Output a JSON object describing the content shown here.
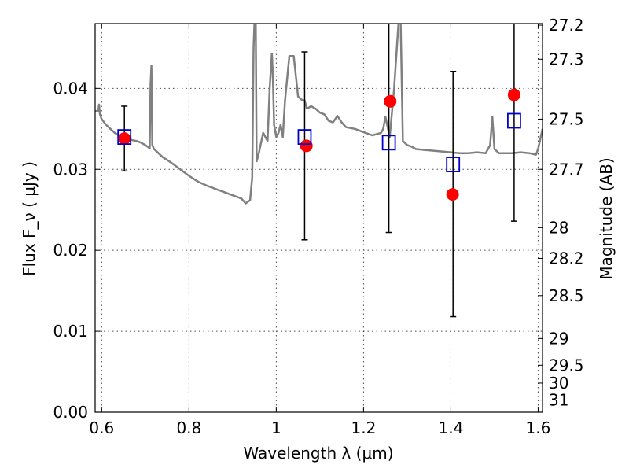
{
  "chart_data": {
    "type": "scatter",
    "title": "",
    "xlabel": "Wavelength  λ (μm)",
    "ylabel": "Flux  F_ν  ( μJy )",
    "ylabel_right": "Magnitude (AB)",
    "xlim": [
      0.585,
      1.61
    ],
    "ylim": [
      0.0,
      0.048
    ],
    "grid": true,
    "legend": "none",
    "x_ticks": [
      "0.6",
      "0.8",
      "1",
      "1.2",
      "1.4",
      "1.6"
    ],
    "x_tick_values": [
      0.6,
      0.8,
      1.0,
      1.2,
      1.4,
      1.6
    ],
    "y_ticks": [
      "0.00",
      "0.01",
      "0.02",
      "0.03",
      "0.04"
    ],
    "y_tick_values": [
      0.0,
      0.01,
      0.02,
      0.03,
      0.04
    ],
    "right_ticks": [
      {
        "label": "27.2",
        "flux": 0.0478
      },
      {
        "label": "27.3",
        "flux": 0.0436
      },
      {
        "label": "27.5",
        "flux": 0.0362
      },
      {
        "label": "27.7",
        "flux": 0.03
      },
      {
        "label": "28",
        "flux": 0.0228
      },
      {
        "label": "28.2",
        "flux": 0.019
      },
      {
        "label": "28.5",
        "flux": 0.0144
      },
      {
        "label": "29",
        "flux": 0.0091
      },
      {
        "label": "29.5",
        "flux": 0.0058
      },
      {
        "label": "30",
        "flux": 0.0036
      },
      {
        "label": "31",
        "flux": 0.0015
      }
    ],
    "model_spectrum": {
      "color": "#808080",
      "x": [
        0.585,
        0.592,
        0.594,
        0.596,
        0.6,
        0.61,
        0.62,
        0.63,
        0.64,
        0.65,
        0.66,
        0.67,
        0.68,
        0.69,
        0.7,
        0.705,
        0.71,
        0.712,
        0.714,
        0.716,
        0.72,
        0.73,
        0.74,
        0.76,
        0.78,
        0.8,
        0.82,
        0.84,
        0.86,
        0.88,
        0.9,
        0.92,
        0.93,
        0.94,
        0.945,
        0.948,
        0.95,
        0.953,
        0.955,
        0.96,
        0.97,
        0.98,
        0.985,
        0.99,
        0.992,
        0.995,
        1.0,
        1.005,
        1.01,
        1.015,
        1.02,
        1.03,
        1.04,
        1.05,
        1.06,
        1.065,
        1.07,
        1.08,
        1.09,
        1.1,
        1.11,
        1.12,
        1.13,
        1.14,
        1.15,
        1.16,
        1.18,
        1.2,
        1.22,
        1.24,
        1.245,
        1.25,
        1.26,
        1.27,
        1.28,
        1.285,
        1.29,
        1.3,
        1.31,
        1.32,
        1.34,
        1.36,
        1.38,
        1.4,
        1.42,
        1.44,
        1.46,
        1.48,
        1.49,
        1.495,
        1.5,
        1.51,
        1.52,
        1.54,
        1.56,
        1.58,
        1.595,
        1.6,
        1.61
      ],
      "y": [
        0.0372,
        0.0372,
        0.038,
        0.0368,
        0.0362,
        0.0355,
        0.035,
        0.0345,
        0.0342,
        0.034,
        0.0338,
        0.0336,
        0.0335,
        0.0333,
        0.033,
        0.0328,
        0.0326,
        0.0405,
        0.0428,
        0.033,
        0.0325,
        0.032,
        0.0315,
        0.0308,
        0.03,
        0.0292,
        0.0285,
        0.028,
        0.0276,
        0.0272,
        0.0268,
        0.0264,
        0.0258,
        0.0262,
        0.029,
        0.045,
        0.048,
        0.048,
        0.031,
        0.032,
        0.0345,
        0.0335,
        0.04,
        0.0443,
        0.042,
        0.0355,
        0.034,
        0.0345,
        0.0355,
        0.034,
        0.0385,
        0.044,
        0.044,
        0.039,
        0.0385,
        0.0385,
        0.0375,
        0.0378,
        0.0375,
        0.037,
        0.0368,
        0.036,
        0.0358,
        0.0366,
        0.0358,
        0.0352,
        0.035,
        0.0346,
        0.0342,
        0.0345,
        0.035,
        0.0365,
        0.034,
        0.04,
        0.048,
        0.048,
        0.0335,
        0.033,
        0.0328,
        0.0325,
        0.0324,
        0.0323,
        0.0322,
        0.0321,
        0.032,
        0.032,
        0.0321,
        0.032,
        0.033,
        0.0365,
        0.0325,
        0.032,
        0.032,
        0.032,
        0.0321,
        0.032,
        0.0318,
        0.0325,
        0.035
      ]
    },
    "series": [
      {
        "marker": "open-square",
        "color": "#0000cc",
        "x": [
          0.652,
          1.065,
          1.258,
          1.405,
          1.545
        ],
        "y": [
          0.034,
          0.034,
          0.0333,
          0.0306,
          0.036
        ],
        "err_low": [
          0.0298,
          0.0213,
          0.0222,
          0.0118,
          0.0236
        ],
        "err_high": [
          0.0378,
          0.0445,
          0.048,
          0.0421,
          0.048
        ]
      },
      {
        "marker": "filled-circle",
        "color": "#ff0000",
        "x": [
          0.652,
          1.069,
          1.261,
          1.404,
          1.545
        ],
        "y": [
          0.0338,
          0.0329,
          0.0384,
          0.0269,
          0.0392
        ]
      }
    ]
  }
}
